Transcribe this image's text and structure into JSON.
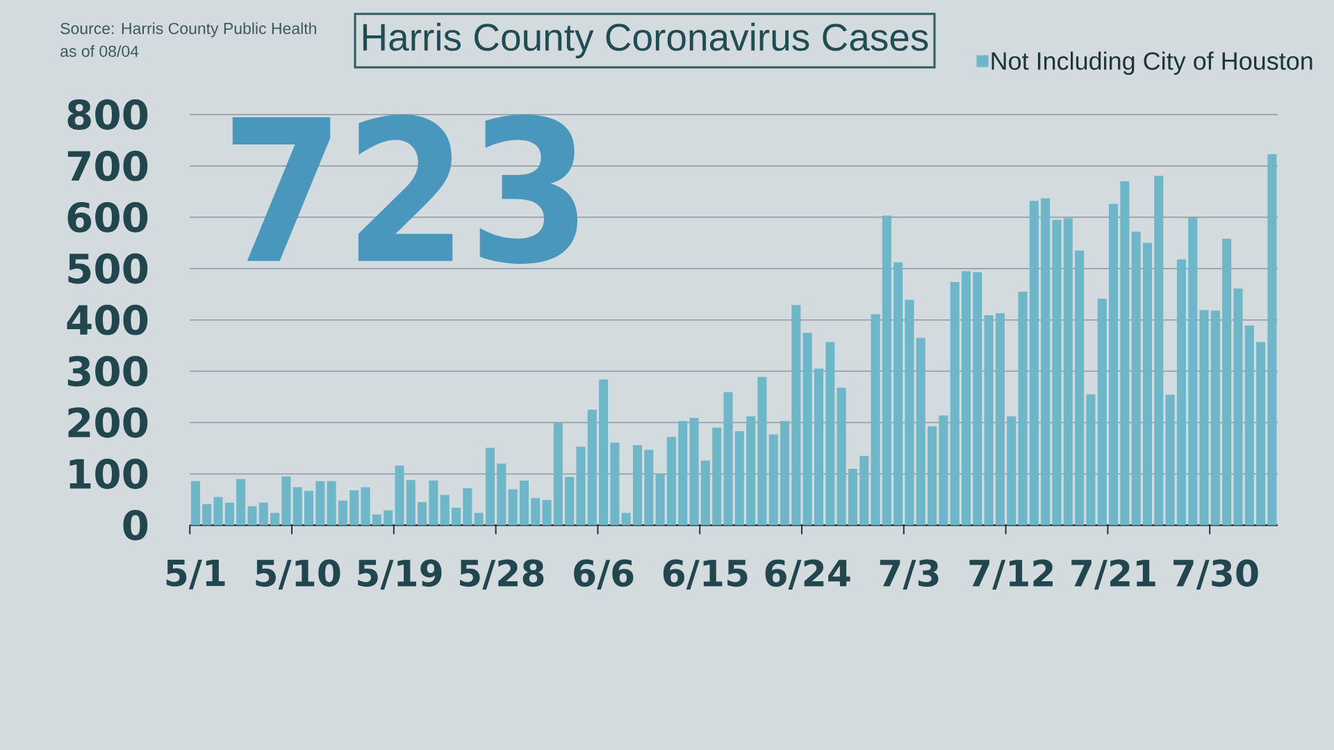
{
  "chart_data": {
    "type": "bar",
    "title": "Harris County Coronavirus Cases",
    "categories": [
      "5/1",
      null,
      null,
      null,
      null,
      null,
      null,
      null,
      null,
      "5/10",
      null,
      null,
      null,
      null,
      null,
      null,
      null,
      null,
      "5/19",
      null,
      null,
      null,
      null,
      null,
      null,
      null,
      null,
      "5/28",
      null,
      null,
      null,
      null,
      null,
      null,
      null,
      null,
      "6/6",
      null,
      null,
      null,
      null,
      null,
      null,
      null,
      null,
      "6/15",
      null,
      null,
      null,
      null,
      null,
      null,
      null,
      null,
      "6/24",
      null,
      null,
      null,
      null,
      null,
      null,
      null,
      null,
      "7/3",
      null,
      null,
      null,
      null,
      null,
      null,
      null,
      null,
      "7/12",
      null,
      null,
      null,
      null,
      null,
      null,
      null,
      null,
      "7/21",
      null,
      null,
      null,
      null,
      null,
      null,
      null,
      null,
      "7/30",
      null,
      null,
      null,
      null,
      null
    ],
    "series": [
      {
        "name": "Not Including City of Houston",
        "color": "#6db7c9",
        "values": [
          86,
          41,
          55,
          44,
          90,
          37,
          44,
          24,
          95,
          74,
          67,
          86,
          86,
          48,
          68,
          74,
          21,
          29,
          116,
          88,
          45,
          87,
          59,
          34,
          72,
          24,
          151,
          120,
          70,
          87,
          53,
          49,
          199,
          94,
          153,
          225,
          284,
          161,
          24,
          156,
          147,
          100,
          172,
          203,
          209,
          126,
          190,
          259,
          183,
          212,
          289,
          177,
          203,
          429,
          375,
          305,
          357,
          268,
          110,
          135,
          411,
          603,
          512,
          439,
          365,
          193,
          214,
          474,
          495,
          493,
          409,
          413,
          212,
          455,
          632,
          637,
          595,
          598,
          535,
          255,
          441,
          626,
          670,
          572,
          550,
          681,
          254,
          518,
          599,
          419,
          418,
          558,
          461,
          389,
          357,
          723
        ]
      }
    ],
    "ylim": [
      0,
      800
    ],
    "yticks": [
      0,
      100,
      200,
      300,
      400,
      500,
      600,
      700,
      800
    ],
    "grid": "y",
    "legend": "top right",
    "annotations": [
      "Source: Harris County Public Health",
      "as of 08/04",
      "723"
    ]
  }
}
